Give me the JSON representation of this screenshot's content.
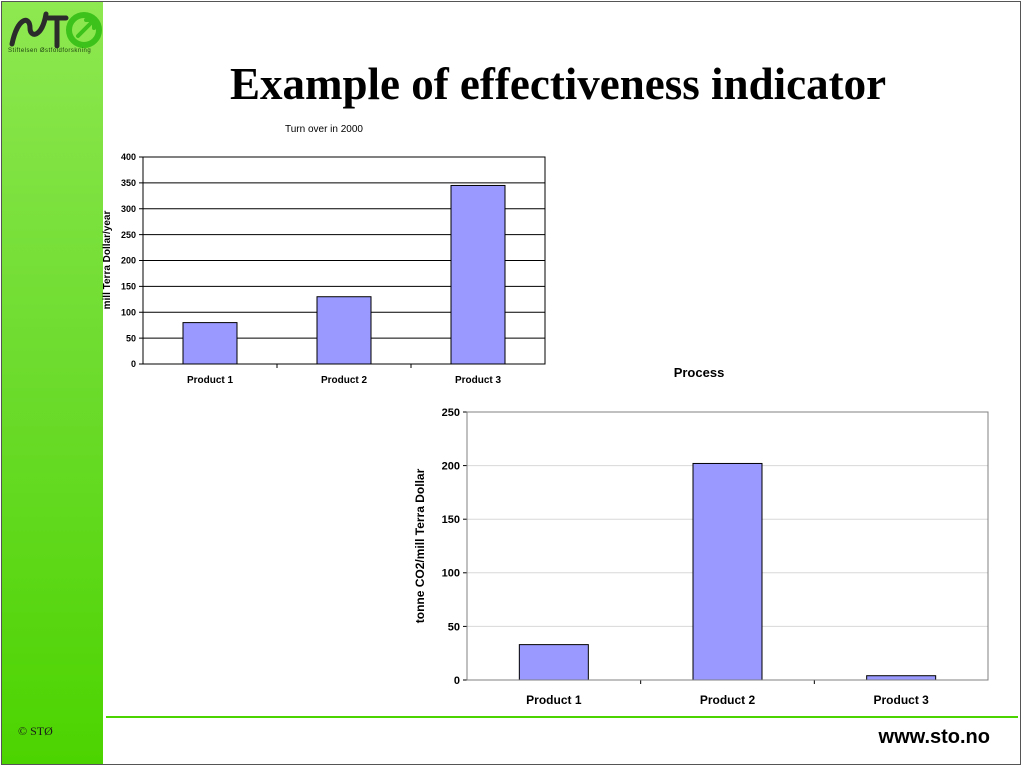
{
  "slide": {
    "title": "Example of effectiveness indicator",
    "logo_text": "Stiftelsen Østfoldforskning",
    "copyright": "© STØ",
    "url": "www.sto.no"
  },
  "colors": {
    "bar_fill": "#9999ff",
    "sidebar_green": "#4cd400",
    "logo_green": "#3cc21a"
  },
  "chart_data": [
    {
      "type": "bar",
      "title": "Turn over in 2000",
      "xlabel": "",
      "ylabel": "mill Terra Dollar/year",
      "categories": [
        "Product 1",
        "Product 2",
        "Product 3"
      ],
      "values": [
        80,
        130,
        345
      ],
      "ylim": [
        0,
        400
      ],
      "yticks": [
        0,
        50,
        100,
        150,
        200,
        250,
        300,
        350,
        400
      ],
      "grid": true,
      "legend": "none"
    },
    {
      "type": "bar",
      "title": "Process",
      "xlabel": "",
      "ylabel": "tonne CO2/mill Terra Dollar",
      "categories": [
        "Product 1",
        "Product 2",
        "Product 3"
      ],
      "values": [
        33,
        202,
        4
      ],
      "ylim": [
        0,
        250
      ],
      "yticks": [
        0,
        50,
        100,
        150,
        200,
        250
      ],
      "grid": true,
      "legend": "none"
    }
  ]
}
